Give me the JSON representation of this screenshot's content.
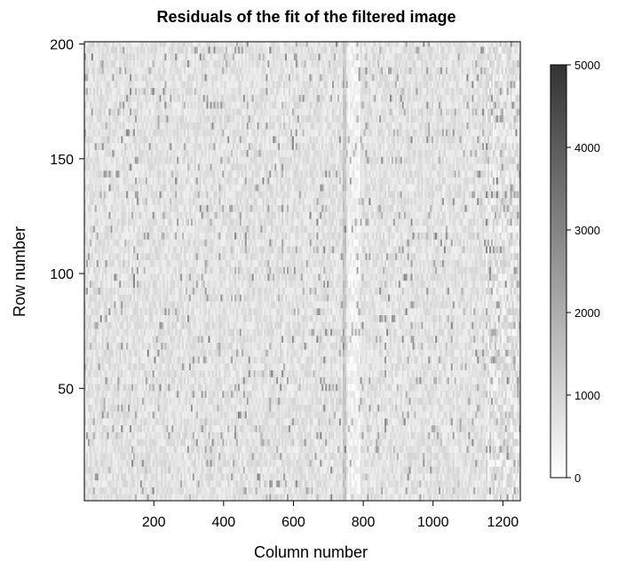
{
  "chart_data": {
    "type": "heatmap",
    "title": "Residuals of the fit of the filtered image",
    "xlabel": "Column number",
    "ylabel": "Row number",
    "xlim": [
      1,
      1250
    ],
    "ylim": [
      1,
      201
    ],
    "x_ticks": [
      200,
      400,
      600,
      800,
      1000,
      1200
    ],
    "y_ticks": [
      50,
      100,
      150,
      200
    ],
    "colorbar": {
      "range": [
        0,
        5000
      ],
      "ticks": [
        0,
        1000,
        2000,
        3000,
        4000,
        5000
      ],
      "low_color": "#ffffff",
      "high_color": "#333333",
      "placement": "right"
    },
    "features": {
      "background_level": 700,
      "dark_streak": {
        "column": 743,
        "level": 1400
      },
      "bright_band": {
        "columns": [
          755,
          790
        ],
        "level": 350
      },
      "noisier_edge_columns": [
        1150,
        1250
      ]
    }
  }
}
